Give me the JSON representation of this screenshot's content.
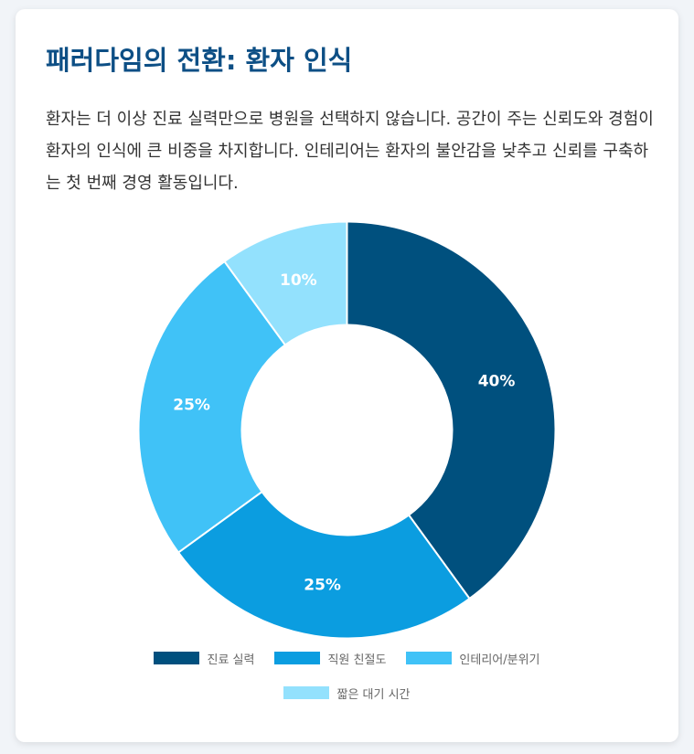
{
  "card": {
    "title": "패러다임의 전환: 환자 인식",
    "description": "환자는 더 이상 진료 실력만으로 병원을 선택하지 않습니다. 공간이 주는 신뢰도와 경험이 환자의 인식에 큰 비중을 차지합니다. 인테리어는 환자의 불안감을 낮추고 신뢰를 구축하는 첫 번째 경영 활동입니다."
  },
  "chart_data": {
    "type": "pie",
    "variant": "doughnut",
    "categories": [
      "진료 실력",
      "직원 친절도",
      "인테리어/분위기",
      "짧은 대기 시간"
    ],
    "values": [
      40,
      25,
      25,
      10
    ],
    "data_labels": [
      "40%",
      "25%",
      "25%",
      "10%"
    ],
    "colors": [
      "#00507e",
      "#0b9de0",
      "#40c2f7",
      "#93e1fd"
    ],
    "legend_position": "bottom"
  }
}
